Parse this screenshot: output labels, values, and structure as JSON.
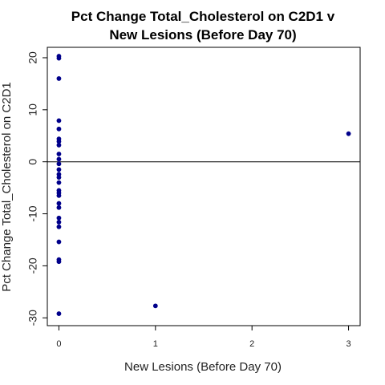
{
  "chart_data": {
    "type": "scatter",
    "title_line1": "Pct Change Total_Cholesterol on C2D1 v",
    "title_line2": "New Lesions (Before Day 70)",
    "xlabel": "New Lesions (Before Day 70)",
    "ylabel": "Pct Change Total_Cholesterol on C2D1",
    "xlim": [
      -0.12,
      3.12
    ],
    "ylim": [
      -31.5,
      22
    ],
    "x_ticks": [
      0,
      1,
      2,
      3
    ],
    "x_tick_labels": [
      "0",
      "1",
      "2",
      "3"
    ],
    "y_ticks": [
      -30,
      -20,
      -10,
      0,
      10,
      20
    ],
    "y_tick_labels": [
      "-30",
      "-20",
      "-10",
      "0",
      "10",
      "20"
    ],
    "reference_line_y": 0,
    "grid": false,
    "legend": "none",
    "point_color": "#00008b",
    "points": [
      {
        "x": 0,
        "y": 20.3
      },
      {
        "x": 0,
        "y": 19.9
      },
      {
        "x": 0,
        "y": 16.0
      },
      {
        "x": 0,
        "y": 7.9
      },
      {
        "x": 0,
        "y": 6.3
      },
      {
        "x": 0,
        "y": 4.4
      },
      {
        "x": 0,
        "y": 3.9
      },
      {
        "x": 0,
        "y": 3.2
      },
      {
        "x": 0,
        "y": 1.5
      },
      {
        "x": 0,
        "y": 0.5
      },
      {
        "x": 0,
        "y": -0.4
      },
      {
        "x": 0,
        "y": -1.5
      },
      {
        "x": 0,
        "y": -2.4
      },
      {
        "x": 0,
        "y": -3.0
      },
      {
        "x": 0,
        "y": -4.0
      },
      {
        "x": 0,
        "y": -5.5
      },
      {
        "x": 0,
        "y": -6.0
      },
      {
        "x": 0,
        "y": -6.5
      },
      {
        "x": 0,
        "y": -8.0
      },
      {
        "x": 0,
        "y": -8.8
      },
      {
        "x": 0,
        "y": -10.8
      },
      {
        "x": 0,
        "y": -11.6
      },
      {
        "x": 0,
        "y": -12.5
      },
      {
        "x": 0,
        "y": -15.4
      },
      {
        "x": 0,
        "y": -18.8
      },
      {
        "x": 0,
        "y": -19.2
      },
      {
        "x": 0,
        "y": -29.2
      },
      {
        "x": 1,
        "y": -27.7
      },
      {
        "x": 3,
        "y": 5.4
      }
    ]
  }
}
